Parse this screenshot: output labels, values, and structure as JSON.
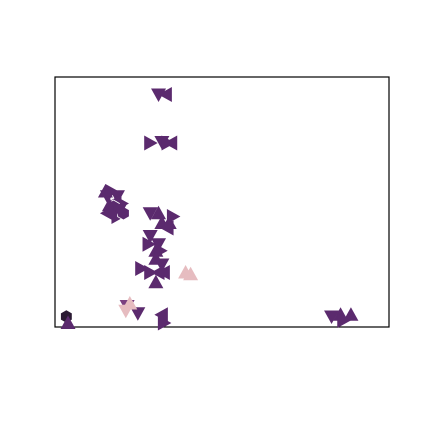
{
  "chart_data": {
    "type": "scatter",
    "title": "",
    "xlabel": "",
    "ylabel": "",
    "xlim": [
      0,
      100
    ],
    "ylim": [
      0,
      100
    ],
    "grid": false,
    "legend": "none",
    "ticks": {
      "x": [],
      "y": []
    },
    "points": [
      {
        "x": 31.0,
        "y": 93.0,
        "marker": "tri-down",
        "color": "#5b2a6e"
      },
      {
        "x": 32.0,
        "y": 74.0,
        "marker": "tri-down",
        "color": "#5b2a6e"
      },
      {
        "x": 33.2,
        "y": 93.0,
        "marker": "tri-left",
        "color": "#5b2a6e"
      },
      {
        "x": 34.8,
        "y": 73.6,
        "marker": "tri-left",
        "color": "#5b2a6e"
      },
      {
        "x": 28.5,
        "y": 73.6,
        "marker": "tri-right",
        "color": "#5b2a6e"
      },
      {
        "x": 33.7,
        "y": 73.6,
        "marker": "tri-right",
        "color": "#5b2a6e"
      },
      {
        "x": 15.1,
        "y": 54.2,
        "marker": "tri-up",
        "color": "#5b2a6e"
      },
      {
        "x": 15.7,
        "y": 52.3,
        "marker": "tri-down",
        "color": "#5b2a6e"
      },
      {
        "x": 16.9,
        "y": 54.2,
        "marker": "tri-right",
        "color": "#5b2a6e"
      },
      {
        "x": 18.7,
        "y": 52.3,
        "marker": "tri-down",
        "color": "#5b2a6e"
      },
      {
        "x": 18.1,
        "y": 50.0,
        "marker": "tri-left",
        "color": "#5b2a6e"
      },
      {
        "x": 19.9,
        "y": 49.4,
        "marker": "tri-right",
        "color": "#5b2a6e"
      },
      {
        "x": 17.5,
        "y": 48.1,
        "marker": "hexagon",
        "color": "#5b2a6e"
      },
      {
        "x": 17.5,
        "y": 46.2,
        "marker": "hexagon",
        "color": "#5b2a6e"
      },
      {
        "x": 16.3,
        "y": 48.7,
        "marker": "tri-up",
        "color": "#5b2a6e"
      },
      {
        "x": 15.7,
        "y": 45.5,
        "marker": "tri-left",
        "color": "#5b2a6e"
      },
      {
        "x": 18.7,
        "y": 44.2,
        "marker": "tri-right",
        "color": "#5b2a6e"
      },
      {
        "x": 20.5,
        "y": 45.5,
        "marker": "hexagon",
        "color": "#5b2a6e"
      },
      {
        "x": 19.3,
        "y": 46.8,
        "marker": "tri-down",
        "color": "#5b2a6e"
      },
      {
        "x": 28.5,
        "y": 45.5,
        "marker": "tri-down",
        "color": "#5b2a6e"
      },
      {
        "x": 31.0,
        "y": 45.5,
        "marker": "tri-up",
        "color": "#5b2a6e"
      },
      {
        "x": 32.0,
        "y": 41.6,
        "marker": "tri-up",
        "color": "#5b2a6e"
      },
      {
        "x": 34.2,
        "y": 41.6,
        "marker": "tri-up",
        "color": "#5b2a6e"
      },
      {
        "x": 33.7,
        "y": 39.6,
        "marker": "tri-left",
        "color": "#5b2a6e"
      },
      {
        "x": 35.3,
        "y": 44.2,
        "marker": "tri-right",
        "color": "#5b2a6e"
      },
      {
        "x": 28.5,
        "y": 36.4,
        "marker": "tri-down",
        "color": "#5b2a6e"
      },
      {
        "x": 31.0,
        "y": 33.1,
        "marker": "tri-down",
        "color": "#5b2a6e"
      },
      {
        "x": 30.2,
        "y": 30.5,
        "marker": "tri-up",
        "color": "#5b2a6e"
      },
      {
        "x": 31.5,
        "y": 30.5,
        "marker": "tri-right",
        "color": "#5b2a6e"
      },
      {
        "x": 28.0,
        "y": 33.1,
        "marker": "tri-right",
        "color": "#5b2a6e"
      },
      {
        "x": 30.2,
        "y": 27.3,
        "marker": "tri-up",
        "color": "#5b2a6e"
      },
      {
        "x": 32.0,
        "y": 25.0,
        "marker": "tri-down",
        "color": "#5b2a6e"
      },
      {
        "x": 25.8,
        "y": 23.4,
        "marker": "tri-right",
        "color": "#5b2a6e"
      },
      {
        "x": 28.5,
        "y": 21.8,
        "marker": "tri-right",
        "color": "#5b2a6e"
      },
      {
        "x": 31.0,
        "y": 21.8,
        "marker": "tri-left",
        "color": "#5b2a6e"
      },
      {
        "x": 32.6,
        "y": 21.8,
        "marker": "tri-left",
        "color": "#5b2a6e"
      },
      {
        "x": 30.2,
        "y": 17.9,
        "marker": "tri-up",
        "color": "#5b2a6e"
      },
      {
        "x": 39.1,
        "y": 21.8,
        "marker": "tri-up",
        "color": "#e6bcc0"
      },
      {
        "x": 40.6,
        "y": 21.1,
        "marker": "tri-up",
        "color": "#e6bcc0"
      },
      {
        "x": 21.6,
        "y": 8.4,
        "marker": "tri-down",
        "color": "#7a3f80"
      },
      {
        "x": 24.8,
        "y": 5.5,
        "marker": "tri-down",
        "color": "#5b2a6e"
      },
      {
        "x": 22.4,
        "y": 9.4,
        "marker": "tri-up",
        "color": "#e6bcc0"
      },
      {
        "x": 21.2,
        "y": 6.5,
        "marker": "tri-down",
        "color": "#e6bcc0"
      },
      {
        "x": 32.0,
        "y": 4.9,
        "marker": "tri-left",
        "color": "#5b2a6e"
      },
      {
        "x": 32.6,
        "y": 1.6,
        "marker": "tri-right",
        "color": "#5b2a6e"
      },
      {
        "x": 3.4,
        "y": 4.2,
        "marker": "hexagon",
        "color": "#2b1a33"
      },
      {
        "x": 3.9,
        "y": 1.6,
        "marker": "tri-up",
        "color": "#5b2a6e"
      },
      {
        "x": 82.8,
        "y": 4.2,
        "marker": "tri-down",
        "color": "#5b2a6e"
      },
      {
        "x": 85.5,
        "y": 4.9,
        "marker": "tri-up",
        "color": "#5b2a6e"
      },
      {
        "x": 88.6,
        "y": 4.9,
        "marker": "tri-up",
        "color": "#5b2a6e"
      },
      {
        "x": 86.3,
        "y": 2.6,
        "marker": "tri-right",
        "color": "#5b2a6e"
      }
    ]
  }
}
